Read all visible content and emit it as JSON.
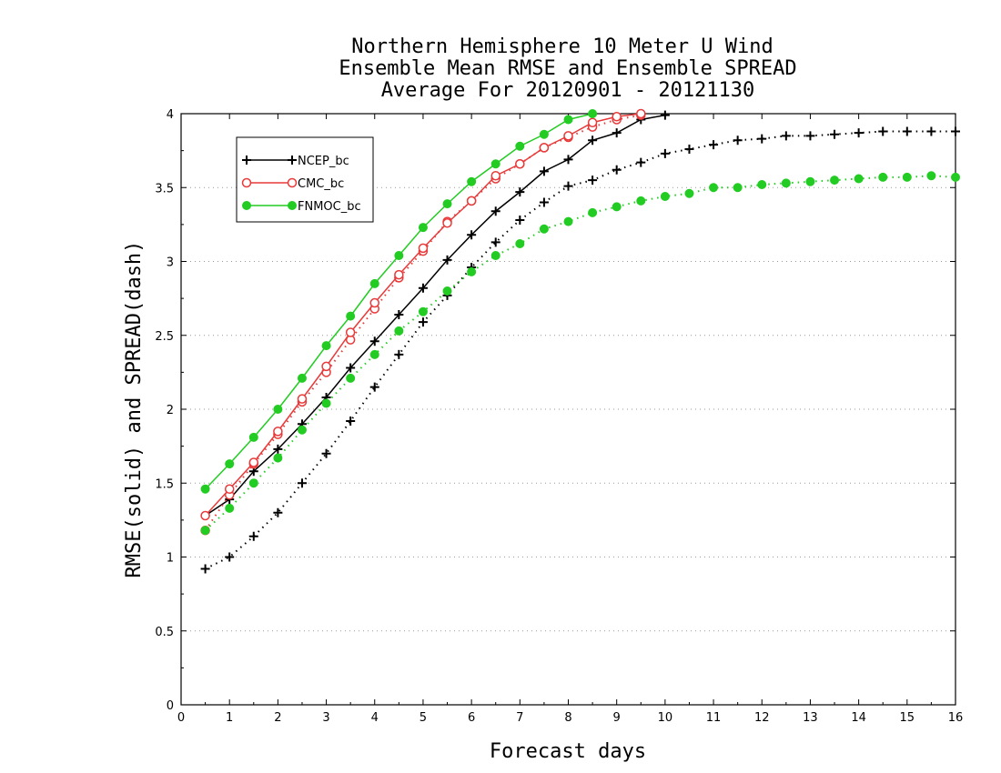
{
  "chart_data": {
    "type": "line",
    "title_lines": [
      "Northern Hemisphere 10 Meter U Wind",
      "Ensemble Mean RMSE and Ensemble SPREAD",
      "Average For 20120901 - 20121130"
    ],
    "xlabel": "Forecast days",
    "ylabel": "RMSE(solid) and SPREAD(dash)",
    "xlim": [
      0,
      16
    ],
    "ylim": [
      0,
      4
    ],
    "xticks": [
      "0",
      "1",
      "2",
      "3",
      "4",
      "5",
      "6",
      "7",
      "8",
      "9",
      "10",
      "11",
      "12",
      "13",
      "14",
      "15",
      "16"
    ],
    "yticks": [
      "0",
      "0.5",
      "1",
      "1.5",
      "2",
      "2.5",
      "3",
      "3.5",
      "4"
    ],
    "grid": "horizontal dotted",
    "legend_position": "top-left",
    "colors": {
      "NCEP_bc": "#000000",
      "CMC_bc": "#e83a3a",
      "FNMOC_bc": "#22cc22"
    },
    "series": [
      {
        "name": "NCEP_bc",
        "marker": "plus",
        "rmse": {
          "x": [
            0.5,
            1,
            1.5,
            2,
            2.5,
            3,
            3.5,
            4,
            4.5,
            5,
            5.5,
            6,
            6.5,
            7,
            7.5,
            8,
            8.5,
            9,
            9.5,
            10
          ],
          "y": [
            1.28,
            1.39,
            1.58,
            1.73,
            1.9,
            2.08,
            2.28,
            2.46,
            2.64,
            2.82,
            3.01,
            3.18,
            3.34,
            3.47,
            3.61,
            3.69,
            3.82,
            3.87,
            3.96,
            3.99
          ]
        },
        "spread": {
          "x": [
            0.5,
            1,
            1.5,
            2,
            2.5,
            3,
            3.5,
            4,
            4.5,
            5,
            5.5,
            6,
            6.5,
            7,
            7.5,
            8,
            8.5,
            9,
            9.5,
            10,
            10.5,
            11,
            11.5,
            12,
            12.5,
            13,
            13.5,
            14,
            14.5,
            15,
            15.5,
            16
          ],
          "y": [
            0.92,
            1.0,
            1.14,
            1.3,
            1.5,
            1.7,
            1.92,
            2.15,
            2.37,
            2.59,
            2.77,
            2.96,
            3.13,
            3.28,
            3.4,
            3.51,
            3.55,
            3.62,
            3.67,
            3.73,
            3.76,
            3.79,
            3.82,
            3.83,
            3.85,
            3.85,
            3.86,
            3.87,
            3.88,
            3.88,
            3.88,
            3.88
          ]
        }
      },
      {
        "name": "CMC_bc",
        "marker": "open-circle",
        "rmse": {
          "x": [
            0.5,
            1,
            1.5,
            2,
            2.5,
            3,
            3.5,
            4,
            4.5,
            5,
            5.5,
            6,
            6.5,
            7,
            7.5,
            8,
            8.5,
            9,
            9.5
          ],
          "y": [
            1.28,
            1.46,
            1.64,
            1.85,
            2.07,
            2.29,
            2.52,
            2.72,
            2.91,
            3.09,
            3.26,
            3.41,
            3.58,
            3.66,
            3.77,
            3.85,
            3.94,
            3.98,
            4.0
          ]
        },
        "spread": {
          "x": [
            0.5,
            1,
            1.5,
            2,
            2.5,
            3,
            3.5,
            4,
            4.5,
            5,
            5.5,
            6,
            6.5,
            7,
            7.5,
            8,
            8.5,
            9,
            9.5
          ],
          "y": [
            1.18,
            1.42,
            1.63,
            1.83,
            2.05,
            2.25,
            2.47,
            2.68,
            2.89,
            3.07,
            3.27,
            3.41,
            3.56,
            3.66,
            3.77,
            3.84,
            3.91,
            3.96,
            3.99
          ]
        }
      },
      {
        "name": "FNMOC_bc",
        "marker": "filled-circle",
        "rmse": {
          "x": [
            0.5,
            1,
            1.5,
            2,
            2.5,
            3,
            3.5,
            4,
            4.5,
            5,
            5.5,
            6,
            6.5,
            7,
            7.5,
            8,
            8.5
          ],
          "y": [
            1.46,
            1.63,
            1.81,
            2.0,
            2.21,
            2.43,
            2.63,
            2.85,
            3.04,
            3.23,
            3.39,
            3.54,
            3.66,
            3.78,
            3.86,
            3.96,
            4.0
          ]
        },
        "spread": {
          "x": [
            0.5,
            1,
            1.5,
            2,
            2.5,
            3,
            3.5,
            4,
            4.5,
            5,
            5.5,
            6,
            6.5,
            7,
            7.5,
            8,
            8.5,
            9,
            9.5,
            10,
            10.5,
            11,
            11.5,
            12,
            12.5,
            13,
            13.5,
            14,
            14.5,
            15,
            15.5,
            16
          ],
          "y": [
            1.18,
            1.33,
            1.5,
            1.67,
            1.86,
            2.04,
            2.21,
            2.37,
            2.53,
            2.66,
            2.8,
            2.93,
            3.04,
            3.12,
            3.22,
            3.27,
            3.33,
            3.37,
            3.41,
            3.44,
            3.46,
            3.5,
            3.5,
            3.52,
            3.53,
            3.54,
            3.55,
            3.56,
            3.57,
            3.57,
            3.58,
            3.57
          ]
        }
      }
    ]
  }
}
